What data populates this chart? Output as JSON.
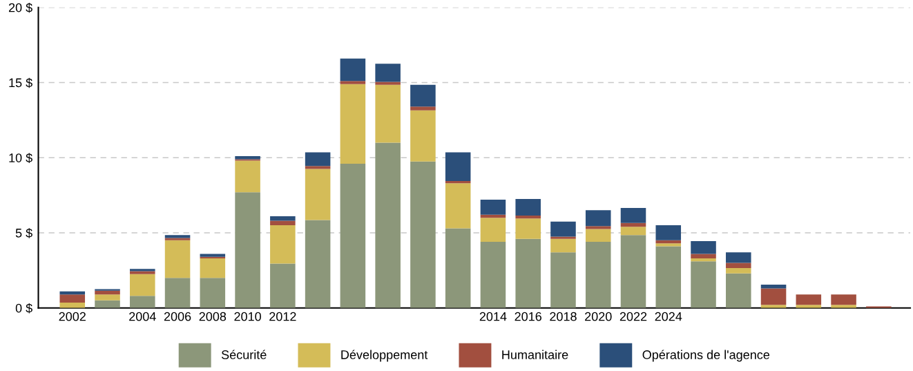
{
  "chart_data": {
    "type": "bar",
    "stacked": true,
    "categories": [
      "2002",
      null,
      "2004",
      "2006",
      "2008",
      "2010",
      "2012",
      null,
      null,
      null,
      null,
      null,
      "2014",
      "2016",
      "2018",
      "2020",
      "2022",
      "2024",
      null,
      null,
      null,
      null,
      null,
      null
    ],
    "series": [
      {
        "name": "Sécurité",
        "color": "#8c977a",
        "values": [
          0.0,
          0.5,
          0.8,
          2.0,
          2.0,
          7.7,
          2.95,
          5.85,
          9.6,
          11.0,
          9.75,
          5.3,
          4.4,
          4.6,
          3.7,
          4.4,
          4.85,
          4.1,
          3.1,
          2.3,
          0.0,
          0.0,
          0.0,
          0.0
        ]
      },
      {
        "name": "Développement",
        "color": "#d4bc58",
        "values": [
          0.35,
          0.4,
          1.45,
          2.5,
          1.3,
          2.1,
          2.55,
          3.4,
          5.3,
          3.85,
          3.4,
          3.0,
          1.6,
          1.35,
          0.9,
          0.85,
          0.55,
          0.2,
          0.2,
          0.35,
          0.2,
          0.2,
          0.2,
          0.0
        ]
      },
      {
        "name": "Humanitaire",
        "color": "#a24f3f",
        "values": [
          0.55,
          0.25,
          0.2,
          0.15,
          0.1,
          0.1,
          0.3,
          0.2,
          0.2,
          0.2,
          0.25,
          0.15,
          0.2,
          0.2,
          0.15,
          0.2,
          0.25,
          0.2,
          0.3,
          0.35,
          1.1,
          0.7,
          0.7,
          0.1
        ]
      },
      {
        "name": "Opérations de l'agence",
        "color": "#2b4f7a",
        "values": [
          0.2,
          0.1,
          0.15,
          0.2,
          0.2,
          0.2,
          0.3,
          0.9,
          1.5,
          1.2,
          1.45,
          1.9,
          1.0,
          1.1,
          1.0,
          1.05,
          1.0,
          1.0,
          0.85,
          0.7,
          0.25,
          0.0,
          0.0,
          0.0
        ]
      }
    ],
    "ylim": [
      0,
      20
    ],
    "yticks": [
      {
        "value": 0,
        "label": "0 $"
      },
      {
        "value": 5,
        "label": "5 $"
      },
      {
        "value": 10,
        "label": "10 $"
      },
      {
        "value": 15,
        "label": "15 $"
      },
      {
        "value": 20,
        "label": "20 $"
      }
    ],
    "grid": "y",
    "legend": "bottom"
  }
}
